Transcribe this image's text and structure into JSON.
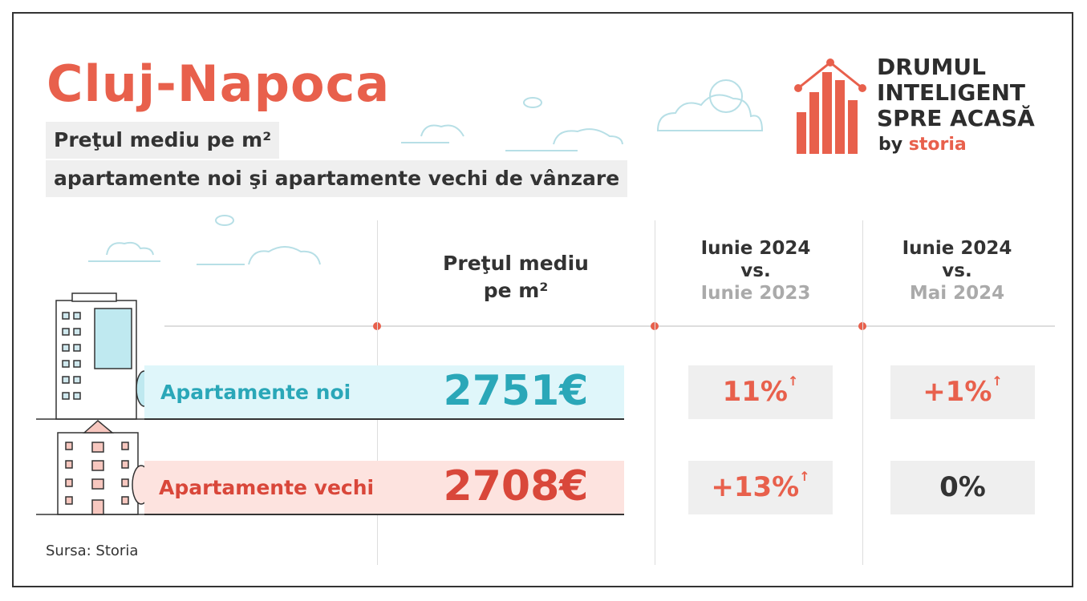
{
  "header": {
    "title": "Cluj-Napoca",
    "subtitle_lines": [
      "Preţul mediu pe m²",
      "apartamente noi şi apartamente vechi de vânzare"
    ]
  },
  "logo": {
    "lines": [
      "DRUMUL",
      "INTELIGENT",
      "SPRE ACASĂ"
    ],
    "by": "by",
    "brand": "storia"
  },
  "table": {
    "columns": [
      [
        "Preţul mediu",
        "pe m²"
      ],
      [
        "Iunie 2024",
        "vs.",
        "Iunie 2023"
      ],
      [
        "Iunie 2024",
        "vs.",
        "Mai 2024"
      ]
    ],
    "rows": [
      [
        "Apartamente noi",
        "2751€",
        "11%",
        "+1%"
      ],
      [
        "Apartamente vechi",
        "2708€",
        "+13%",
        "0%"
      ]
    ]
  },
  "source": "Sursa: Storia"
}
